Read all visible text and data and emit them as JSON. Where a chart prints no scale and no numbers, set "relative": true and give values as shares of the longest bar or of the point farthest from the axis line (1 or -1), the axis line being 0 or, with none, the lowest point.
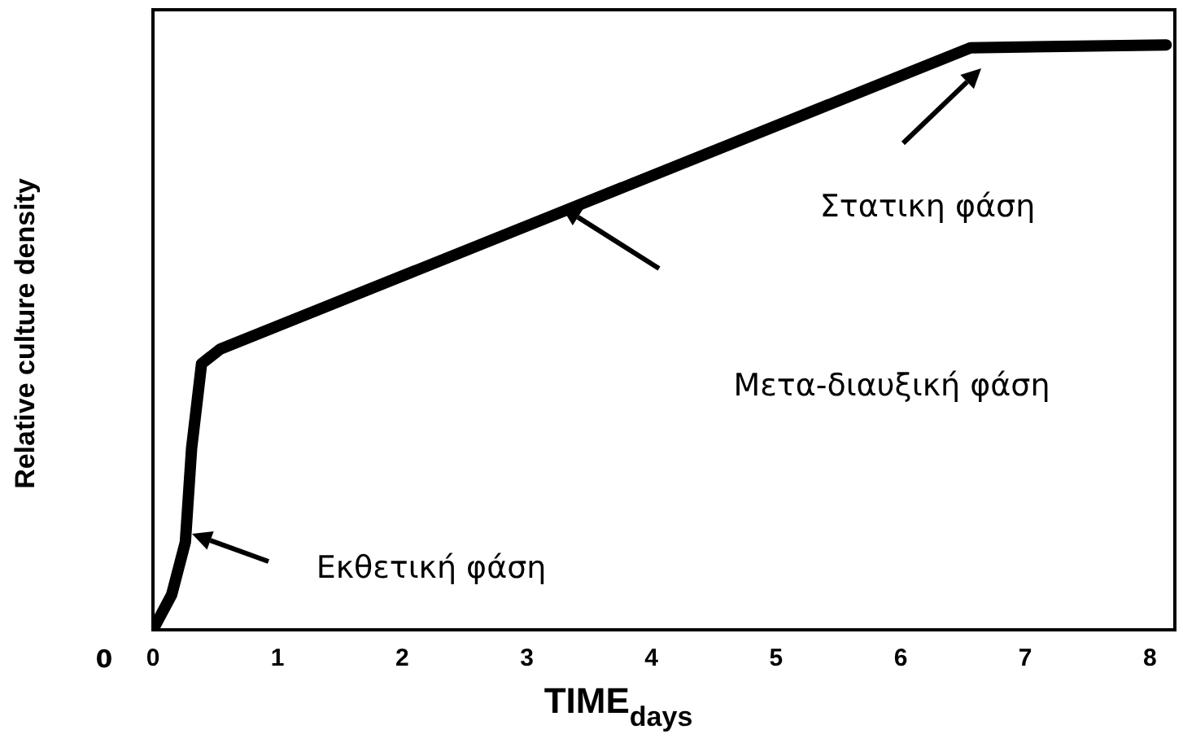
{
  "chart_data": {
    "type": "line",
    "xlabel": "TIME$_{days}$",
    "ylabel": "Relative culture density",
    "relative": true,
    "series": [
      {
        "color": "#000000",
        "x": [
          0,
          0.15,
          0.26,
          0.31,
          0.39,
          0.54,
          6.56,
          8.13
        ],
        "values": [
          0,
          0.06,
          0.15,
          0.31,
          0.455,
          0.48,
          0.995,
          1
        ]
      }
    ],
    "xlim": [
      0,
      8.2
    ],
    "xticks": [
      0,
      1,
      2,
      3,
      4,
      5,
      6,
      7,
      8
    ],
    "annotations": [
      "Στατικη φάση",
      "Μετα-διαυξική φάση",
      "Εκθετική φάση",
      "0"
    ],
    "grid": false,
    "legend": false,
    "marker": "none",
    "line_style": "solid"
  }
}
